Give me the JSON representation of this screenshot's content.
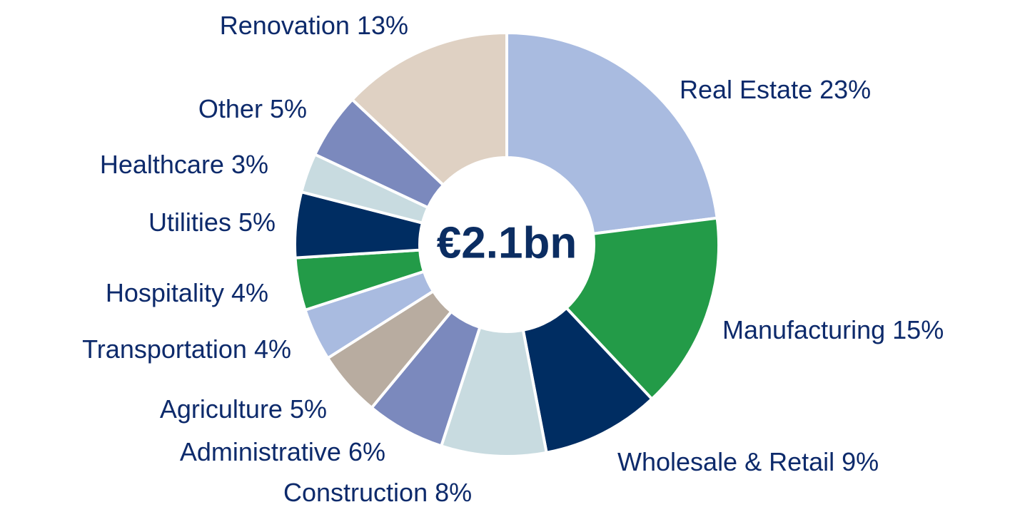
{
  "chart_data": {
    "type": "donut",
    "center_label": "€2.1bn",
    "categories": [
      "Real Estate",
      "Manufacturing",
      "Wholesale & Retail",
      "Construction",
      "Administrative",
      "Agriculture",
      "Transportation",
      "Hospitality",
      "Utilities",
      "Healthcare",
      "Other",
      "Renovation"
    ],
    "values": [
      23,
      15,
      9,
      8,
      6,
      5,
      4,
      4,
      5,
      3,
      5,
      13
    ],
    "value_labels": [
      "23%",
      "15%",
      "9%",
      "8%",
      "6%",
      "5%",
      "4%",
      "4%",
      "5%",
      "3%",
      "5%",
      "13%"
    ],
    "colors": [
      "#a9bbe0",
      "#239b48",
      "#002d62",
      "#c8dbe0",
      "#7b89bd",
      "#b8aca0",
      "#a9bbe0",
      "#239b48",
      "#002d62",
      "#c8dbe0",
      "#7b89bd",
      "#dfd1c3"
    ]
  }
}
